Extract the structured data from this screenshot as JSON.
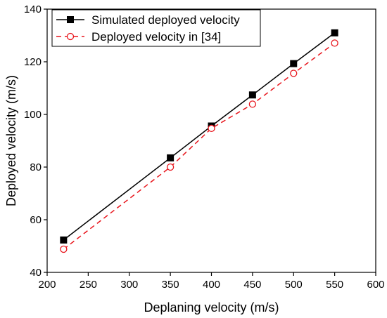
{
  "chart_data": {
    "type": "line",
    "xlabel": "Deplaning velocity (m/s)",
    "ylabel": "Deployed velocity (m/s)",
    "xlim": [
      200,
      600
    ],
    "ylim": [
      40,
      140
    ],
    "xticks": [
      200,
      250,
      300,
      350,
      400,
      450,
      500,
      550,
      600
    ],
    "yticks": [
      40,
      60,
      80,
      100,
      120,
      140
    ],
    "grid": false,
    "legend_position": "top-left",
    "series": [
      {
        "name": "Simulated deployed velocity",
        "x": [
          220,
          350,
          400,
          450,
          500,
          550
        ],
        "y": [
          52.3,
          83.5,
          95.6,
          107.4,
          119.3,
          131.0
        ],
        "color": "#000000",
        "line_style": "solid",
        "marker": "filled-square"
      },
      {
        "name": "Deployed velocity in [34]",
        "x": [
          220,
          350,
          400,
          450,
          500,
          550
        ],
        "y": [
          48.8,
          80.0,
          94.7,
          103.9,
          115.6,
          127.1
        ],
        "color": "#e8141b",
        "line_style": "dashed",
        "marker": "open-circle"
      }
    ]
  }
}
